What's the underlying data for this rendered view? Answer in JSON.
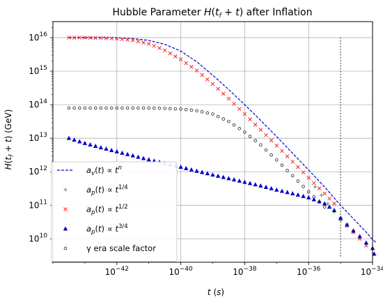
{
  "chart_data": {
    "type": "line",
    "title": "Hubble Parameter H(t_f + t) after Inflation",
    "xlabel": "t (s)",
    "ylabel": "H(t_f + t) (GeV)",
    "x_scale": "log",
    "y_scale": "log",
    "xlim": [
      1e-44,
      1e-34
    ],
    "ylim": [
      2000000000.0,
      3e+16
    ],
    "x_ticks": [
      {
        "value": 1e-42,
        "base": "10",
        "exp": "−42"
      },
      {
        "value": 1e-40,
        "base": "10",
        "exp": "−40"
      },
      {
        "value": 1e-38,
        "base": "10",
        "exp": "−38"
      },
      {
        "value": 1e-36,
        "base": "10",
        "exp": "−36"
      },
      {
        "value": 1e-34,
        "base": "10",
        "exp": "−34"
      }
    ],
    "y_ticks": [
      {
        "value": 10000000000.0,
        "base": "10",
        "exp": "10"
      },
      {
        "value": 100000000000.0,
        "base": "10",
        "exp": "11"
      },
      {
        "value": 1000000000000.0,
        "base": "10",
        "exp": "12"
      },
      {
        "value": 10000000000000.0,
        "base": "10",
        "exp": "13"
      },
      {
        "value": 100000000000000.0,
        "base": "10",
        "exp": "14"
      },
      {
        "value": 1000000000000000.0,
        "base": "10",
        "exp": "15"
      },
      {
        "value": 1e+16,
        "base": "10",
        "exp": "16"
      }
    ],
    "grid": true,
    "legend_position": "lower-left",
    "vertical_dotted_line_x": 1e-35,
    "series": [
      {
        "name": "a_v(t) ∝ t^n",
        "legend_label": "a_v(t) ∝ t^n",
        "style": "dashed-line",
        "color": "#0000cc",
        "points": [
          [
            -43.5,
            16.0
          ],
          [
            -43.0,
            16.0
          ],
          [
            -42.5,
            16.0
          ],
          [
            -42.0,
            15.99
          ],
          [
            -41.5,
            15.97
          ],
          [
            -41.0,
            15.92
          ],
          [
            -40.5,
            15.8
          ],
          [
            -40.0,
            15.6
          ],
          [
            -39.5,
            15.28
          ],
          [
            -39.0,
            14.88
          ],
          [
            -38.5,
            14.45
          ],
          [
            -38.0,
            14.0
          ],
          [
            -37.5,
            13.53
          ],
          [
            -37.0,
            13.05
          ],
          [
            -36.5,
            12.55
          ],
          [
            -36.0,
            12.05
          ],
          [
            -35.5,
            11.55
          ],
          [
            -35.2,
            11.22
          ],
          [
            -35.0,
            11.0
          ],
          [
            -34.8,
            10.8
          ],
          [
            -34.6,
            10.6
          ],
          [
            -34.4,
            10.4
          ],
          [
            -34.2,
            10.2
          ],
          [
            -34.0,
            9.98
          ],
          [
            -33.9,
            9.9
          ]
        ]
      },
      {
        "name": "a_p(t) ∝ t^1/4",
        "legend_label": "a_p(t) ∝ t^1/4",
        "style": "plus-marker",
        "color": "#22aa22",
        "points": [
          [
            -35.8,
            11.55
          ],
          [
            -35.6,
            11.3
          ],
          [
            -35.4,
            11.05
          ],
          [
            -35.2,
            10.8
          ],
          [
            -35.0,
            10.55
          ],
          [
            -34.8,
            10.38
          ],
          [
            -34.6,
            10.2
          ],
          [
            -34.4,
            10.05
          ]
        ]
      },
      {
        "name": "a_p(t) ∝ t^1/2",
        "legend_label": "a_p(t) ∝ t^1/2",
        "style": "x-marker",
        "color": "#ff2222",
        "points": [
          [
            -43.5,
            16.0
          ],
          [
            -43.0,
            16.0
          ],
          [
            -42.5,
            15.99
          ],
          [
            -42.0,
            15.97
          ],
          [
            -41.5,
            15.92
          ],
          [
            -41.0,
            15.82
          ],
          [
            -40.5,
            15.62
          ],
          [
            -40.0,
            15.35
          ],
          [
            -39.5,
            15.02
          ],
          [
            -39.0,
            14.62
          ],
          [
            -38.5,
            14.18
          ],
          [
            -38.0,
            13.72
          ],
          [
            -37.5,
            13.25
          ],
          [
            -37.0,
            12.78
          ],
          [
            -36.5,
            12.3
          ],
          [
            -36.0,
            11.82
          ],
          [
            -35.5,
            11.35
          ],
          [
            -35.2,
            11.05
          ],
          [
            -35.0,
            10.6
          ],
          [
            -34.6,
            10.2
          ],
          [
            -34.2,
            9.8
          ]
        ]
      },
      {
        "name": "a_p(t) ∝ t^3/4",
        "legend_label": "a_p(t) ∝ t^3/4",
        "style": "triangle-marker",
        "color": "#0000cc",
        "points": [
          [
            -43.5,
            13.0
          ],
          [
            -43.0,
            12.85
          ],
          [
            -42.5,
            12.72
          ],
          [
            -42.0,
            12.6
          ],
          [
            -41.5,
            12.48
          ],
          [
            -41.0,
            12.36
          ],
          [
            -40.5,
            12.25
          ],
          [
            -40.0,
            12.14
          ],
          [
            -39.5,
            12.02
          ],
          [
            -39.0,
            11.91
          ],
          [
            -38.5,
            11.8
          ],
          [
            -38.0,
            11.69
          ],
          [
            -37.5,
            11.58
          ],
          [
            -37.0,
            11.46
          ],
          [
            -36.5,
            11.35
          ],
          [
            -36.0,
            11.23
          ],
          [
            -35.5,
            11.05
          ],
          [
            -35.2,
            10.85
          ],
          [
            -35.0,
            10.62
          ],
          [
            -34.8,
            10.42
          ],
          [
            -34.6,
            10.24
          ],
          [
            -34.4,
            10.07
          ],
          [
            -34.2,
            9.88
          ],
          [
            -34.0,
            9.72
          ],
          [
            -33.95,
            9.55
          ]
        ]
      },
      {
        "name": "γ era scale factor",
        "legend_label": "γ era scale factor",
        "style": "circle-marker",
        "color": "#222222",
        "points": [
          [
            -43.5,
            13.9
          ],
          [
            -43.0,
            13.9
          ],
          [
            -42.5,
            13.9
          ],
          [
            -42.0,
            13.9
          ],
          [
            -41.5,
            13.9
          ],
          [
            -41.0,
            13.9
          ],
          [
            -40.5,
            13.89
          ],
          [
            -40.0,
            13.87
          ],
          [
            -39.5,
            13.82
          ],
          [
            -39.0,
            13.72
          ],
          [
            -38.5,
            13.5
          ],
          [
            -38.0,
            13.18
          ],
          [
            -37.5,
            12.8
          ],
          [
            -37.0,
            12.35
          ],
          [
            -36.5,
            11.88
          ],
          [
            -36.0,
            11.4
          ],
          [
            -35.5,
            10.95
          ]
        ]
      }
    ]
  }
}
